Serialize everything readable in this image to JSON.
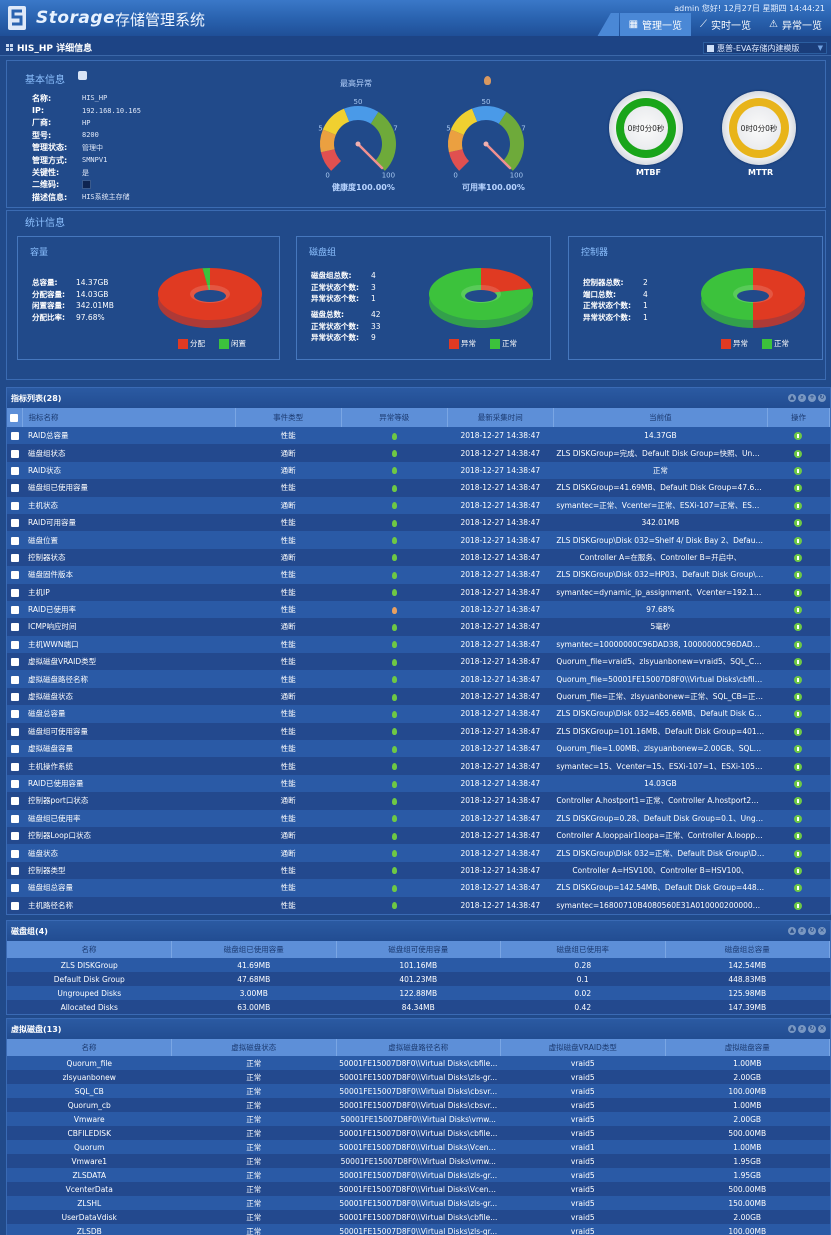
{
  "header": {
    "brand": "Storage",
    "system_title": "存储管理系统",
    "user_greeting": "admin 您好! 12月27日 星期四 14:44:21",
    "nav_tabs": [
      {
        "label": "管理一览",
        "icon": "table-icon",
        "active": true
      },
      {
        "label": "实时一览",
        "icon": "chart-line-icon",
        "active": false
      },
      {
        "label": "异常一览",
        "icon": "warning-icon",
        "active": false
      }
    ]
  },
  "subheader": {
    "title": "HIS_HP 详细信息",
    "device_select": "惠普-EVA存储内建模版"
  },
  "basic_info": {
    "title": "基本信息",
    "fields": [
      {
        "label": "名称:",
        "value": "HIS_HP"
      },
      {
        "label": "IP:",
        "value": "192.168.10.165"
      },
      {
        "label": "厂商:",
        "value": "HP"
      },
      {
        "label": "型号:",
        "value": "8200"
      },
      {
        "label": "管理状态:",
        "value": "管理中"
      },
      {
        "label": "管理方式:",
        "value": "SMNPV1"
      },
      {
        "label": "关键性:",
        "value": "是"
      },
      {
        "label": "二维码:",
        "value": ""
      },
      {
        "label": "描述信息:",
        "value": "HIS系统主存储"
      }
    ],
    "highest_alarm_label": "最高异常",
    "gauges": [
      {
        "caption": "健康度100.00%",
        "value": 100,
        "ticks": [
          "0",
          "25",
          "50",
          "75",
          "100"
        ]
      },
      {
        "caption": "可用率100.00%",
        "value": 100,
        "ticks": [
          "0",
          "25",
          "50",
          "75",
          "100"
        ]
      }
    ],
    "rings": [
      {
        "label": "MTBF",
        "value": "0时0分0秒",
        "color": "#1aa51a"
      },
      {
        "label": "MTTR",
        "value": "0时0分0秒",
        "color": "#e8b41a"
      }
    ]
  },
  "stats": {
    "title": "统计信息",
    "capacity": {
      "title": "容量",
      "rows": [
        {
          "label": "总容量:",
          "value": "14.37GB"
        },
        {
          "label": "分配容量:",
          "value": "14.03GB"
        },
        {
          "label": "闲置容量:",
          "value": "342.01MB"
        },
        {
          "label": "分配比率:",
          "value": "97.68%"
        }
      ],
      "legend": [
        {
          "label": "分配",
          "color": "#e03a22"
        },
        {
          "label": "闲置",
          "color": "#3cc23c"
        }
      ],
      "pie": [
        {
          "name": "分配",
          "value": 97.68,
          "color": "#e03a22"
        },
        {
          "name": "闲置",
          "value": 2.32,
          "color": "#3cc23c"
        }
      ]
    },
    "disk_group": {
      "title": "磁盘组",
      "rows_a": [
        {
          "label": "磁盘组总数:",
          "value": "4"
        },
        {
          "label": "正常状态个数:",
          "value": "3"
        },
        {
          "label": "异常状态个数:",
          "value": "1"
        }
      ],
      "rows_b": [
        {
          "label": "磁盘总数:",
          "value": "42"
        },
        {
          "label": "正常状态个数:",
          "value": "33"
        },
        {
          "label": "异常状态个数:",
          "value": "9"
        }
      ],
      "legend": [
        {
          "label": "异常",
          "color": "#e03a22"
        },
        {
          "label": "正常",
          "color": "#3cc23c"
        }
      ],
      "pie": [
        {
          "name": "异常",
          "value": 9,
          "color": "#e03a22"
        },
        {
          "name": "正常",
          "value": 33,
          "color": "#3cc23c"
        }
      ]
    },
    "controller": {
      "title": "控制器",
      "rows": [
        {
          "label": "控制器总数:",
          "value": "2"
        },
        {
          "label": "端口总数:",
          "value": "4"
        },
        {
          "label": "正常状态个数:",
          "value": "1"
        },
        {
          "label": "异常状态个数:",
          "value": "1"
        }
      ],
      "legend": [
        {
          "label": "异常",
          "color": "#e03a22"
        },
        {
          "label": "正常",
          "color": "#3cc23c"
        }
      ],
      "pie": [
        {
          "name": "异常",
          "value": 1,
          "color": "#e03a22"
        },
        {
          "name": "正常",
          "value": 1,
          "color": "#3cc23c"
        }
      ]
    }
  },
  "indicator_table": {
    "title": "指标列表(28)",
    "columns": [
      "指标名称",
      "事件类型",
      "异常等级",
      "最新采集时间",
      "当前值",
      "操作"
    ],
    "rows": [
      {
        "name": "RAID总容量",
        "type": "性能",
        "level": "normal",
        "time": "2018-12-27 14:38:47",
        "value": "14.37GB"
      },
      {
        "name": "磁盘组状态",
        "type": "通断",
        "level": "normal",
        "time": "2018-12-27 14:38:47",
        "value": "ZLS DISKGroup=完成、Default Disk Group=快照、Ungro..."
      },
      {
        "name": "RAID状态",
        "type": "通断",
        "level": "normal",
        "time": "2018-12-27 14:38:47",
        "value": "正常"
      },
      {
        "name": "磁盘组已使用容量",
        "type": "性能",
        "level": "normal",
        "time": "2018-12-27 14:38:47",
        "value": "ZLS DISKGroup=41.69MB、Default Disk Group=47.68M..."
      },
      {
        "name": "主机状态",
        "type": "通断",
        "level": "normal",
        "time": "2018-12-27 14:38:47",
        "value": "symantec=正常、Vcenter=正常、ESXi-107=正常、ESXi-1..."
      },
      {
        "name": "RAID可用容量",
        "type": "性能",
        "level": "normal",
        "time": "2018-12-27 14:38:47",
        "value": "342.01MB"
      },
      {
        "name": "磁盘位置",
        "type": "性能",
        "level": "normal",
        "time": "2018-12-27 14:38:47",
        "value": "ZLS DISKGroup\\Disk 032=Shelf 4/ Disk Bay 2、Default D..."
      },
      {
        "name": "控制器状态",
        "type": "通断",
        "level": "normal",
        "time": "2018-12-27 14:38:47",
        "value": "Controller A=在服务、Controller B=开启中、"
      },
      {
        "name": "磁盘固件版本",
        "type": "性能",
        "level": "normal",
        "time": "2018-12-27 14:38:47",
        "value": "ZLS DISKGroup\\Disk 032=HP03、Default Disk Group\\Di..."
      },
      {
        "name": "主机IP",
        "type": "性能",
        "level": "normal",
        "time": "2018-12-27 14:38:47",
        "value": "symantec=dynamic_ip_assignment、Vcenter=192.168.1..."
      },
      {
        "name": "RAID已使用率",
        "type": "性能",
        "level": "warning",
        "time": "2018-12-27 14:38:47",
        "value": "97.68%"
      },
      {
        "name": "ICMP响应时间",
        "type": "通断",
        "level": "normal",
        "time": "2018-12-27 14:38:47",
        "value": "5毫秒"
      },
      {
        "name": "主机WWN端口",
        "type": "性能",
        "level": "normal",
        "time": "2018-12-27 14:38:47",
        "value": "symantec=10000000C96DAD38, 10000000C96DAD39..."
      },
      {
        "name": "虚拟磁盘VRAID类型",
        "type": "性能",
        "level": "normal",
        "time": "2018-12-27 14:38:47",
        "value": "Quorum_file=vraid5、zlsyuanbonew=vraid5、SQL_CB=v..."
      },
      {
        "name": "虚拟磁盘路径名称",
        "type": "性能",
        "level": "normal",
        "time": "2018-12-27 14:38:47",
        "value": "Quorum_file=50001FE15007D8F0\\\\Virtual Disks\\cbfile-..."
      },
      {
        "name": "虚拟磁盘状态",
        "type": "通断",
        "level": "normal",
        "time": "2018-12-27 14:38:47",
        "value": "Quorum_file=正常、zlsyuanbonew=正常、SQL_CB=正常..."
      },
      {
        "name": "磁盘总容量",
        "type": "性能",
        "level": "normal",
        "time": "2018-12-27 14:38:47",
        "value": "ZLS DISKGroup\\Disk 032=465.66MB、Default Disk Grou..."
      },
      {
        "name": "磁盘组可使用容量",
        "type": "性能",
        "level": "normal",
        "time": "2018-12-27 14:38:47",
        "value": "ZLS DISKGroup=101.16MB、Default Disk Group=401.23..."
      },
      {
        "name": "虚拟磁盘容量",
        "type": "性能",
        "level": "normal",
        "time": "2018-12-27 14:38:47",
        "value": "Quorum_file=1.00MB、zlsyuanbonew=2.00GB、SQL_C..."
      },
      {
        "name": "主机操作系统",
        "type": "性能",
        "level": "normal",
        "time": "2018-12-27 14:38:47",
        "value": "symantec=15、Vcenter=15、ESXi-107=1、ESXi-105=1..."
      },
      {
        "name": "RAID已使用容量",
        "type": "性能",
        "level": "normal",
        "time": "2018-12-27 14:38:47",
        "value": "14.03GB"
      },
      {
        "name": "控制器port口状态",
        "type": "通断",
        "level": "normal",
        "time": "2018-12-27 14:38:47",
        "value": "Controller A.hostport1=正常、Controller A.hostport2=正..."
      },
      {
        "name": "磁盘组已使用率",
        "type": "性能",
        "level": "normal",
        "time": "2018-12-27 14:38:47",
        "value": "ZLS DISKGroup=0.28、Default Disk Group=0.1、Ungrou..."
      },
      {
        "name": "控制器Loop口状态",
        "type": "通断",
        "level": "normal",
        "time": "2018-12-27 14:38:47",
        "value": "Controller A.looppair1loopa=正常、Controller A.looppair..."
      },
      {
        "name": "磁盘状态",
        "type": "通断",
        "level": "normal",
        "time": "2018-12-27 14:38:47",
        "value": "ZLS DISKGroup\\Disk 032=正常、Default Disk Group\\Dis..."
      },
      {
        "name": "控制器类型",
        "type": "性能",
        "level": "normal",
        "time": "2018-12-27 14:38:47",
        "value": "Controller A=HSV100、Controller B=HSV100、"
      },
      {
        "name": "磁盘组总容量",
        "type": "性能",
        "level": "normal",
        "time": "2018-12-27 14:38:47",
        "value": "ZLS DISKGroup=142.54MB、Default Disk Group=448.83..."
      },
      {
        "name": "主机路径名称",
        "type": "性能",
        "level": "normal",
        "time": "2018-12-27 14:38:47",
        "value": "symantec=16800710B4080560E31A010000200000000..."
      }
    ]
  },
  "disk_group_table": {
    "title": "磁盘组(4)",
    "columns": [
      "名称",
      "磁盘组已使用容量",
      "磁盘组可使用容量",
      "磁盘组已使用率",
      "磁盘组总容量"
    ],
    "rows": [
      [
        "ZLS DISKGroup",
        "41.69MB",
        "101.16MB",
        "0.28",
        "142.54MB"
      ],
      [
        "Default Disk Group",
        "47.68MB",
        "401.23MB",
        "0.1",
        "448.83MB"
      ],
      [
        "Ungrouped Disks",
        "3.00MB",
        "122.88MB",
        "0.02",
        "125.98MB"
      ],
      [
        "Allocated Disks",
        "63.00MB",
        "84.34MB",
        "0.42",
        "147.39MB"
      ]
    ]
  },
  "virtual_disk_table": {
    "title": "虚拟磁盘(13)",
    "columns": [
      "名称",
      "虚拟磁盘状态",
      "虚拟磁盘路径名称",
      "虚拟磁盘VRAID类型",
      "虚拟磁盘容量"
    ],
    "rows": [
      [
        "Quorum_file",
        "正常",
        "50001FE15007D8F0\\\\Virtual Disks\\cbfile...",
        "vraid5",
        "1.00MB"
      ],
      [
        "zlsyuanbonew",
        "正常",
        "50001FE15007D8F0\\\\Virtual Disks\\zls-gr...",
        "vraid5",
        "2.00GB"
      ],
      [
        "SQL_CB",
        "正常",
        "50001FE15007D8F0\\\\Virtual Disks\\cbsvr...",
        "vraid5",
        "100.00MB"
      ],
      [
        "Quorum_cb",
        "正常",
        "50001FE15007D8F0\\\\Virtual Disks\\cbsvr...",
        "vraid5",
        "1.00MB"
      ],
      [
        "Vmware",
        "正常",
        "50001FE15007D8F0\\\\Virtual Disks\\vmw...",
        "vraid5",
        "2.00GB"
      ],
      [
        "CBFILEDISK",
        "正常",
        "50001FE15007D8F0\\\\Virtual Disks\\cbfile...",
        "vraid5",
        "500.00MB"
      ],
      [
        "Quorum",
        "正常",
        "50001FE15007D8F0\\\\Virtual Disks\\Vcent...",
        "vraid1",
        "1.00MB"
      ],
      [
        "Vmware1",
        "正常",
        "50001FE15007D8F0\\\\Virtual Disks\\vmw...",
        "vraid5",
        "1.95GB"
      ],
      [
        "ZLSDATA",
        "正常",
        "50001FE15007D8F0\\\\Virtual Disks\\zls-gr...",
        "vraid5",
        "1.95GB"
      ],
      [
        "VcenterData",
        "正常",
        "50001FE15007D8F0\\\\Virtual Disks\\Vcent...",
        "vraid5",
        "500.00MB"
      ],
      [
        "ZLSHL",
        "正常",
        "50001FE15007D8F0\\\\Virtual Disks\\zls-gr...",
        "vraid5",
        "150.00MB"
      ],
      [
        "UserDataVdisk",
        "正常",
        "50001FE15007D8F0\\\\Virtual Disks\\cbfile...",
        "vraid5",
        "2.00GB"
      ],
      [
        "ZLSDB",
        "正常",
        "50001FE15007D8F0\\\\Virtual Disks\\zls-gr...",
        "vraid5",
        "100.00MB"
      ]
    ]
  },
  "colors": {
    "status_normal": "#6ec845",
    "status_warning": "#e8a060",
    "accent": "#4a88d6"
  }
}
